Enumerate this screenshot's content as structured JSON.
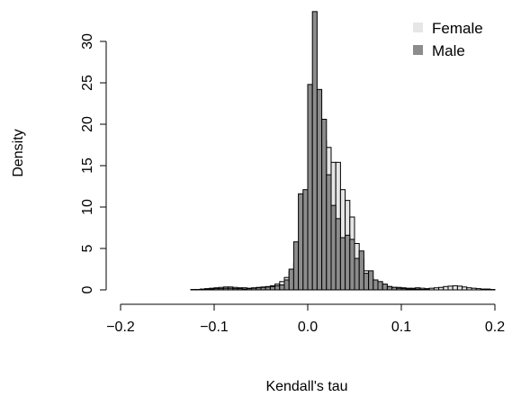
{
  "chart_data": {
    "type": "bar",
    "xlabel": "Kendall's tau",
    "ylabel": "Density",
    "xlim": [
      -0.2,
      0.2
    ],
    "ylim": [
      0,
      33
    ],
    "x_ticks": [
      -0.2,
      -0.1,
      0.0,
      0.1,
      0.2
    ],
    "x_tick_labels": [
      "−0.2",
      "−0.1",
      "0.0",
      "0.1",
      "0.2"
    ],
    "y_ticks": [
      0,
      5,
      10,
      15,
      20,
      25,
      30
    ],
    "y_tick_labels": [
      "0",
      "5",
      "10",
      "15",
      "20",
      "25",
      "30"
    ],
    "bin_width": 0.005,
    "legend": "top-right",
    "grid": false,
    "series": [
      {
        "name": "Female",
        "color": "#e6e6e6",
        "bins": [
          [
            -0.125,
            0.05
          ],
          [
            -0.12,
            0.05
          ],
          [
            -0.115,
            0.1
          ],
          [
            -0.11,
            0.15
          ],
          [
            -0.105,
            0.2
          ],
          [
            -0.1,
            0.25
          ],
          [
            -0.095,
            0.3
          ],
          [
            -0.09,
            0.35
          ],
          [
            -0.085,
            0.35
          ],
          [
            -0.08,
            0.3
          ],
          [
            -0.075,
            0.25
          ],
          [
            -0.07,
            0.25
          ],
          [
            -0.065,
            0.2
          ],
          [
            -0.06,
            0.25
          ],
          [
            -0.055,
            0.3
          ],
          [
            -0.05,
            0.35
          ],
          [
            -0.045,
            0.4
          ],
          [
            -0.04,
            0.5
          ],
          [
            -0.035,
            0.7
          ],
          [
            -0.03,
            1.0
          ],
          [
            -0.025,
            1.5
          ],
          [
            -0.02,
            2.2
          ],
          [
            -0.015,
            3.2
          ],
          [
            -0.01,
            5.0
          ],
          [
            -0.005,
            8.5
          ],
          [
            0.0,
            14.0
          ],
          [
            0.005,
            18.2
          ],
          [
            0.01,
            17.8
          ],
          [
            0.015,
            18.0
          ],
          [
            0.02,
            17.2
          ],
          [
            0.025,
            15.4
          ],
          [
            0.03,
            15.4
          ],
          [
            0.035,
            12.1
          ],
          [
            0.04,
            10.8
          ],
          [
            0.045,
            8.8
          ],
          [
            0.05,
            5.6
          ],
          [
            0.055,
            3.7
          ],
          [
            0.06,
            2.3
          ],
          [
            0.065,
            1.4
          ],
          [
            0.07,
            1.0
          ],
          [
            0.075,
            0.7
          ],
          [
            0.08,
            0.5
          ],
          [
            0.085,
            0.4
          ],
          [
            0.09,
            0.3
          ],
          [
            0.095,
            0.3
          ],
          [
            0.1,
            0.25
          ],
          [
            0.105,
            0.2
          ],
          [
            0.11,
            0.2
          ],
          [
            0.115,
            0.25
          ],
          [
            0.12,
            0.2
          ],
          [
            0.125,
            0.15
          ],
          [
            0.13,
            0.2
          ],
          [
            0.135,
            0.25
          ],
          [
            0.14,
            0.3
          ],
          [
            0.145,
            0.4
          ],
          [
            0.15,
            0.45
          ],
          [
            0.155,
            0.5
          ],
          [
            0.16,
            0.45
          ],
          [
            0.165,
            0.35
          ],
          [
            0.17,
            0.25
          ],
          [
            0.175,
            0.2
          ],
          [
            0.18,
            0.15
          ],
          [
            0.185,
            0.1
          ],
          [
            0.19,
            0.1
          ],
          [
            0.195,
            0.05
          ]
        ]
      },
      {
        "name": "Male",
        "color": "#8c8c8c",
        "bins": [
          [
            -0.11,
            0.1
          ],
          [
            -0.105,
            0.1
          ],
          [
            -0.1,
            0.15
          ],
          [
            -0.095,
            0.15
          ],
          [
            -0.09,
            0.2
          ],
          [
            -0.085,
            0.2
          ],
          [
            -0.08,
            0.15
          ],
          [
            -0.075,
            0.15
          ],
          [
            -0.07,
            0.1
          ],
          [
            -0.065,
            0.15
          ],
          [
            -0.06,
            0.2
          ],
          [
            -0.055,
            0.25
          ],
          [
            -0.05,
            0.3
          ],
          [
            -0.045,
            0.35
          ],
          [
            -0.04,
            0.4
          ],
          [
            -0.035,
            0.5
          ],
          [
            -0.03,
            0.6
          ],
          [
            -0.025,
            1.2
          ],
          [
            -0.02,
            2.5
          ],
          [
            -0.015,
            5.8
          ],
          [
            -0.01,
            11.6
          ],
          [
            -0.005,
            12.1
          ],
          [
            0.0,
            24.8
          ],
          [
            0.005,
            33.6
          ],
          [
            0.01,
            24.2
          ],
          [
            0.015,
            20.6
          ],
          [
            0.02,
            13.9
          ],
          [
            0.025,
            10.2
          ],
          [
            0.03,
            8.6
          ],
          [
            0.035,
            6.3
          ],
          [
            0.04,
            6.6
          ],
          [
            0.045,
            6.1
          ],
          [
            0.05,
            3.8
          ],
          [
            0.055,
            4.7
          ],
          [
            0.06,
            2.0
          ],
          [
            0.065,
            2.3
          ],
          [
            0.07,
            1.2
          ],
          [
            0.075,
            1.0
          ],
          [
            0.08,
            0.7
          ],
          [
            0.085,
            0.4
          ],
          [
            0.09,
            0.3
          ],
          [
            0.095,
            0.2
          ],
          [
            0.1,
            0.15
          ],
          [
            0.105,
            0.1
          ],
          [
            0.11,
            0.1
          ],
          [
            0.115,
            0.1
          ],
          [
            0.12,
            0.05
          ],
          [
            0.125,
            0.05
          ]
        ]
      }
    ]
  }
}
